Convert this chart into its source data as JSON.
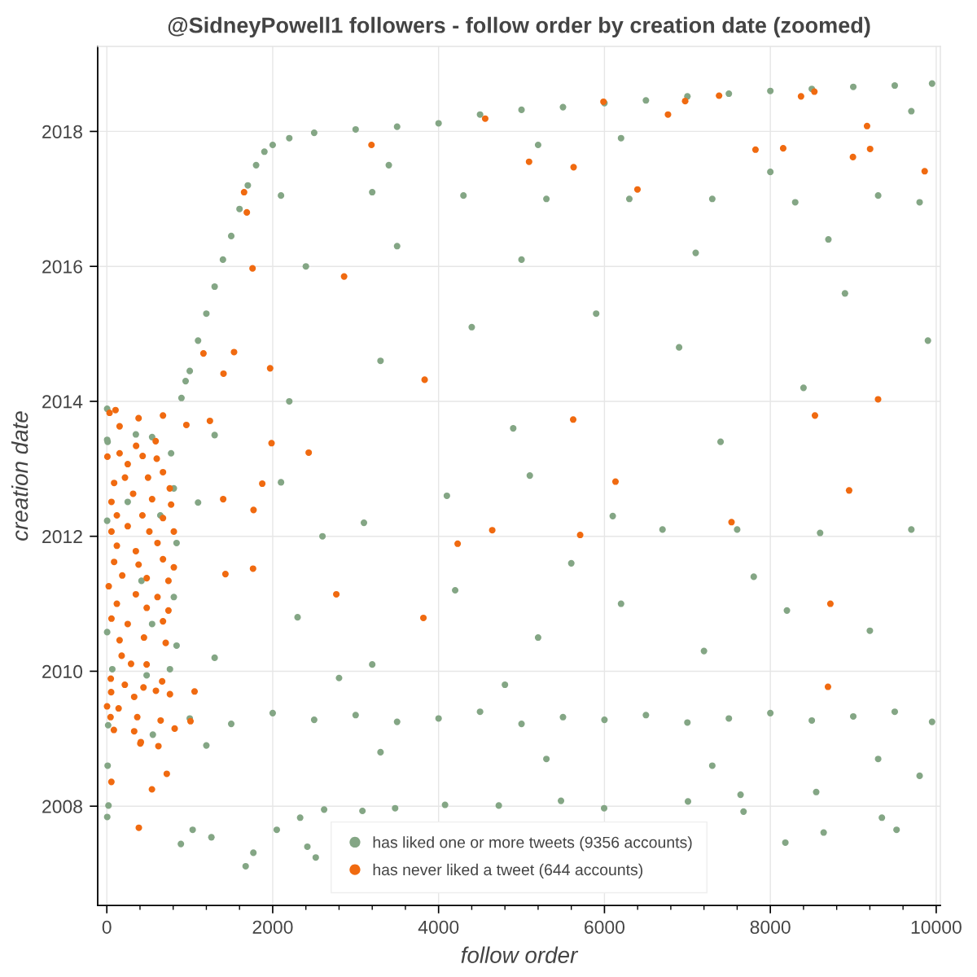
{
  "chart_data": {
    "type": "scatter",
    "title": "@SidneyPowell1 followers - follow order by creation date (zoomed)",
    "xlabel": "follow order",
    "ylabel": "creation date",
    "xlim": [
      -110,
      10050
    ],
    "ylim": [
      2006.53,
      2019.26
    ],
    "xticks": [
      0,
      {
        "value": 400,
        "label": null
      },
      {
        "value": 800,
        "label": null
      },
      {
        "value": 1200,
        "label": null
      },
      {
        "value": 1600,
        "label": null
      },
      2000,
      {
        "value": 2400,
        "label": null
      },
      {
        "value": 2800,
        "label": null
      },
      {
        "value": 3200,
        "label": null
      },
      {
        "value": 3600,
        "label": null
      },
      4000,
      {
        "value": 4400,
        "label": null
      },
      {
        "value": 4800,
        "label": null
      },
      {
        "value": 5200,
        "label": null
      },
      {
        "value": 5600,
        "label": null
      },
      6000,
      {
        "value": 6400,
        "label": null
      },
      {
        "value": 6800,
        "label": null
      },
      {
        "value": 7200,
        "label": null
      },
      {
        "value": 7600,
        "label": null
      },
      8000,
      {
        "value": 8400,
        "label": null
      },
      {
        "value": 8800,
        "label": null
      },
      {
        "value": 9200,
        "label": null
      },
      {
        "value": 9600,
        "label": null
      },
      10000
    ],
    "yticks": [
      2008,
      2010,
      2012,
      2014,
      2016,
      2018
    ],
    "grid": true,
    "legend": "bottom",
    "marker": "circle",
    "series": [
      {
        "name": "has liked one or more tweets (9356 accounts)",
        "color": "#84a685",
        "x": [
          4,
          10,
          4,
          546,
          350,
          775,
          808,
          252,
          645,
          841,
          4,
          418,
          808,
          4,
          546,
          841,
          66,
          480,
          761,
          555,
          16,
          10,
          20,
          5,
          900,
          950,
          1000,
          1100,
          1200,
          1300,
          1400,
          1500,
          1600,
          1700,
          1800,
          1900,
          2000,
          2200,
          2500,
          3000,
          3500,
          4000,
          4500,
          5000,
          5500,
          6000,
          6500,
          7000,
          7500,
          8000,
          8500,
          9000,
          9500,
          9950,
          893,
          1035,
          1261,
          1674,
          1767,
          2049,
          2331,
          2418,
          2519,
          2620,
          3082,
          3476,
          4078,
          4726,
          5996,
          7677,
          8181,
          8643,
          9345,
          9522,
          8553,
          7641,
          5476,
          7007,
          1000,
          1500,
          2000,
          2500,
          3000,
          3500,
          4000,
          4500,
          5000,
          5500,
          6000,
          6500,
          7000,
          7500,
          8000,
          8500,
          9000,
          9500,
          9950,
          1200,
          3300,
          5300,
          7300,
          9300,
          9800,
          1300,
          2300,
          3200,
          4200,
          5200,
          6200,
          7200,
          8200,
          9200,
          2800,
          4800,
          7800,
          1100,
          2100,
          3100,
          4100,
          5100,
          6100,
          6700,
          7600,
          8600,
          9700,
          2600,
          5600,
          1300,
          2200,
          3300,
          4400,
          4900,
          5900,
          6900,
          7400,
          8400,
          8900,
          9900,
          2400,
          3500,
          5000,
          7100,
          8700,
          2100,
          3200,
          4300,
          5300,
          6300,
          7300,
          8300,
          9300,
          9800,
          3400,
          5200,
          6200,
          8000,
          9700
        ],
        "values": [
          2013.89,
          2013.4,
          2013.43,
          2013.47,
          2013.51,
          2013.23,
          2012.71,
          2012.51,
          2012.31,
          2011.9,
          2012.23,
          2011.34,
          2011.1,
          2010.58,
          2010.7,
          2010.38,
          2010.03,
          2009.94,
          2010.03,
          2009.06,
          2009.2,
          2008.6,
          2008.01,
          2007.84,
          2014.05,
          2014.3,
          2014.45,
          2014.9,
          2015.3,
          2015.7,
          2016.1,
          2016.45,
          2016.85,
          2017.2,
          2017.5,
          2017.7,
          2017.8,
          2017.9,
          2017.98,
          2018.03,
          2018.07,
          2018.12,
          2018.25,
          2018.32,
          2018.36,
          2018.42,
          2018.46,
          2018.52,
          2018.56,
          2018.6,
          2018.63,
          2018.66,
          2018.68,
          2018.71,
          2007.44,
          2007.65,
          2007.54,
          2007.11,
          2007.31,
          2007.65,
          2007.83,
          2007.4,
          2007.24,
          2007.95,
          2007.93,
          2007.97,
          2008.02,
          2008.01,
          2007.97,
          2007.92,
          2007.46,
          2007.61,
          2007.83,
          2007.65,
          2008.21,
          2008.17,
          2008.08,
          2008.07,
          2009.3,
          2009.22,
          2009.38,
          2009.28,
          2009.35,
          2009.25,
          2009.3,
          2009.4,
          2009.22,
          2009.32,
          2009.28,
          2009.35,
          2009.24,
          2009.3,
          2009.38,
          2009.27,
          2009.33,
          2009.4,
          2009.25,
          2008.9,
          2008.8,
          2008.7,
          2008.6,
          2008.7,
          2008.45,
          2010.2,
          2010.8,
          2010.1,
          2011.2,
          2010.5,
          2011.0,
          2010.3,
          2010.9,
          2010.6,
          2009.9,
          2009.8,
          2011.4,
          2012.5,
          2012.8,
          2012.2,
          2012.6,
          2012.9,
          2012.3,
          2012.1,
          2012.1,
          2012.05,
          2012.1,
          2012.0,
          2011.6,
          2013.5,
          2014.0,
          2014.6,
          2015.1,
          2013.6,
          2015.3,
          2014.8,
          2013.4,
          2014.2,
          2015.6,
          2014.9,
          2016.0,
          2016.3,
          2016.1,
          2016.2,
          2016.4,
          2017.05,
          2017.1,
          2017.05,
          2017.0,
          2017.0,
          2017.0,
          2016.95,
          2017.05,
          2016.95,
          2017.5,
          2017.8,
          2017.9,
          2017.4,
          2018.3
        ]
      },
      {
        "name": "has never liked a tweet (644 accounts)",
        "color": "#f06a10",
        "x": [
          105,
          33,
          154,
          383,
          677,
          589,
          353,
          7,
          154,
          432,
          602,
          252,
          677,
          88,
          219,
          497,
          759,
          56,
          317,
          546,
          775,
          121,
          429,
          677,
          56,
          252,
          513,
          808,
          121,
          350,
          611,
          88,
          383,
          677,
          808,
          186,
          481,
          743,
          23,
          350,
          611,
          121,
          481,
          743,
          56,
          252,
          677,
          154,
          448,
          710,
          179,
          292,
          480,
          48,
          217,
          442,
          667,
          761,
          52,
          330,
          592,
          3,
          142,
          367,
          45,
          649,
          818,
          85,
          330,
          404,
          55,
          386,
          544,
          723,
          622,
          410,
          3832,
          5623,
          6133,
          4647,
          5707,
          4230,
          2767,
          3817,
          7532,
          8538,
          9299,
          8950,
          8724,
          6766,
          9166,
          9203,
          8996,
          9861,
          7821,
          8155,
          6398,
          5628,
          5091,
          8370,
          8531,
          7382,
          6973,
          5988,
          3191,
          2861,
          1757,
          1688,
          1655,
          4562,
          1969,
          1534,
          1986,
          2434,
          1243,
          959,
          1874,
          1403,
          1769,
          1763,
          1430,
          1165,
          1407,
          1058,
          1009,
          8695
        ],
        "values": [
          2013.87,
          2013.83,
          2013.63,
          2013.75,
          2013.79,
          2013.41,
          2013.34,
          2013.18,
          2013.23,
          2013.19,
          2013.15,
          2013.07,
          2012.95,
          2012.79,
          2012.87,
          2012.87,
          2012.71,
          2012.51,
          2012.63,
          2012.55,
          2012.47,
          2012.31,
          2012.31,
          2012.27,
          2012.07,
          2012.15,
          2012.07,
          2012.07,
          2011.86,
          2011.78,
          2011.9,
          2011.62,
          2011.58,
          2011.66,
          2011.54,
          2011.42,
          2011.38,
          2011.34,
          2011.26,
          2011.14,
          2011.1,
          2011.0,
          2010.94,
          2010.9,
          2010.78,
          2010.7,
          2010.74,
          2010.46,
          2010.5,
          2010.42,
          2010.23,
          2010.11,
          2010.1,
          2009.89,
          2009.8,
          2009.76,
          2009.85,
          2009.66,
          2009.69,
          2009.62,
          2009.71,
          2009.48,
          2009.45,
          2009.32,
          2009.32,
          2009.27,
          2009.15,
          2009.13,
          2009.11,
          2008.93,
          2008.36,
          2007.68,
          2008.25,
          2008.48,
          2008.89,
          2008.95,
          2014.32,
          2013.73,
          2012.81,
          2012.09,
          2012.02,
          2011.89,
          2011.14,
          2010.79,
          2012.21,
          2013.79,
          2014.03,
          2012.68,
          2011.0,
          2018.25,
          2018.08,
          2017.74,
          2017.62,
          2017.41,
          2017.73,
          2017.75,
          2017.14,
          2017.47,
          2017.55,
          2018.52,
          2018.59,
          2018.53,
          2018.45,
          2018.44,
          2017.8,
          2015.85,
          2015.97,
          2016.8,
          2017.1,
          2018.19,
          2014.49,
          2014.73,
          2013.38,
          2013.24,
          2013.71,
          2013.65,
          2012.78,
          2012.55,
          2012.39,
          2011.52,
          2011.44,
          2014.71,
          2014.41,
          2009.7,
          2009.26,
          2009.77
        ]
      }
    ]
  }
}
